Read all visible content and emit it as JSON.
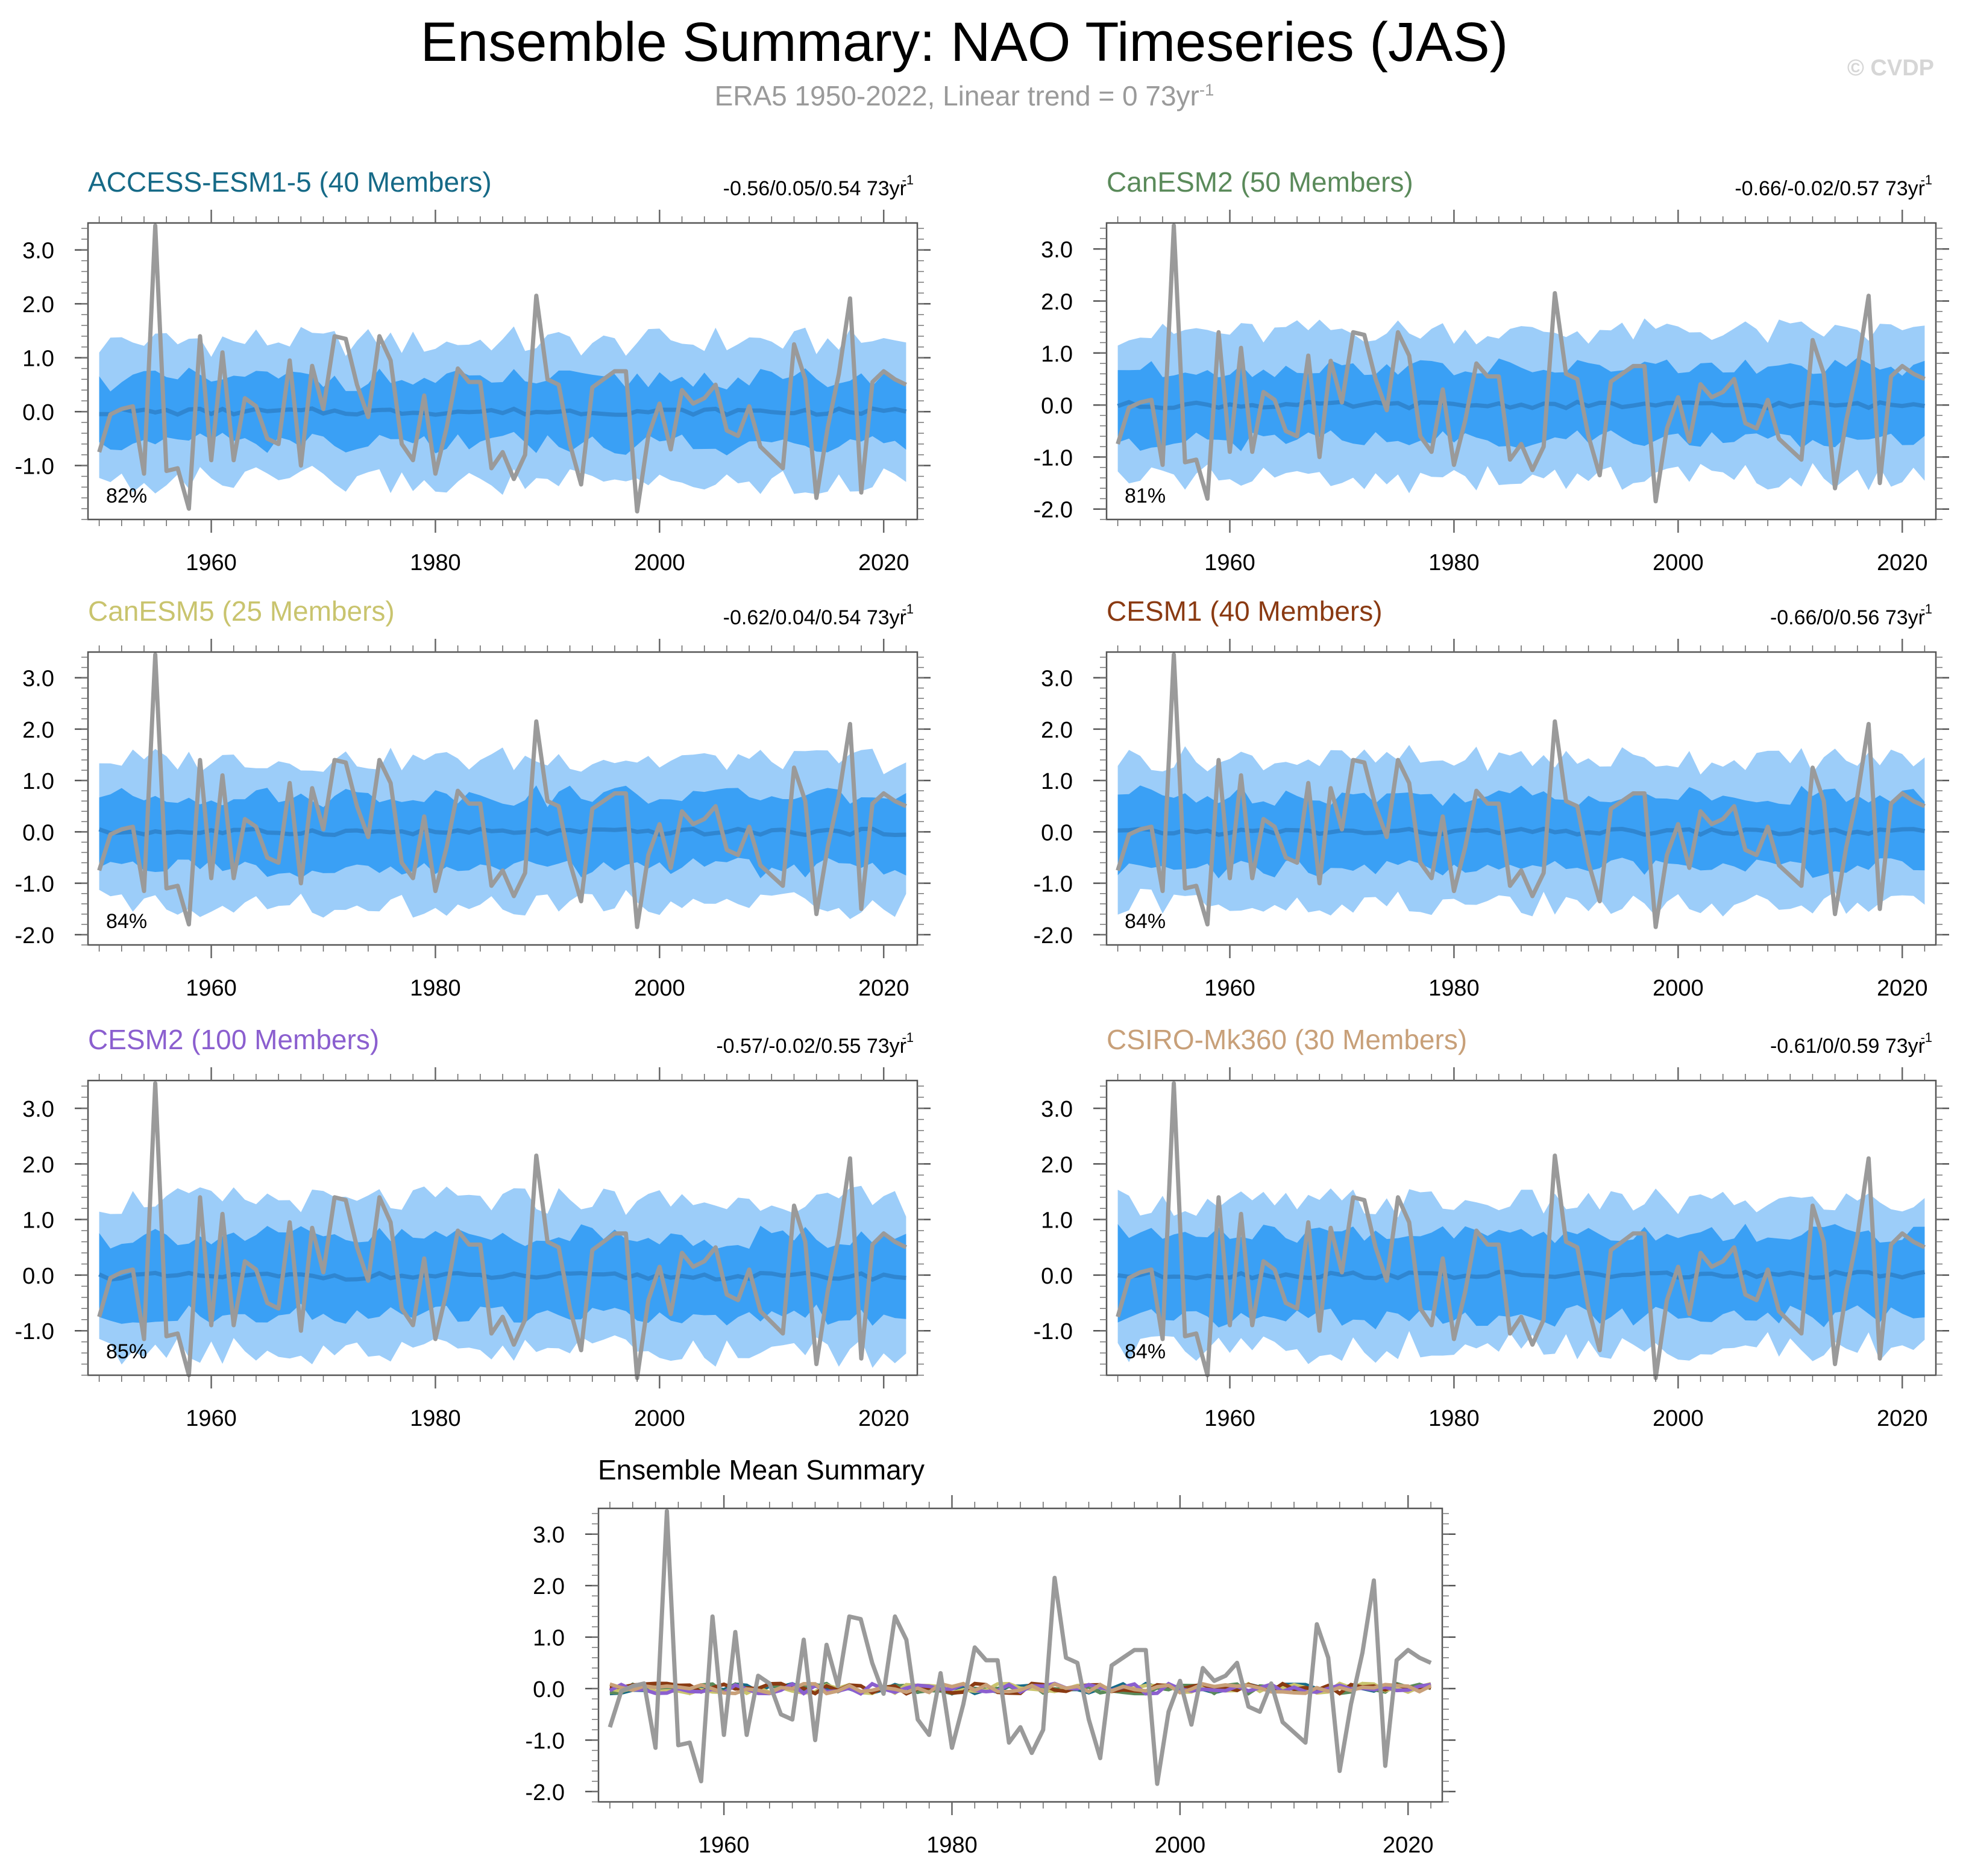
{
  "page": {
    "title": "Ensemble Summary: NAO Timeseries (JAS)",
    "subtitle_main": "ERA5 1950-2022, Linear trend = 0 73yr",
    "subtitle_sup": "-1",
    "watermark": "© CVDP"
  },
  "chart_data": [
    {
      "type": "line",
      "title": "ACCESS-ESM1-5 (40 Members)",
      "title_color": "#166a87",
      "trend_text": "-0.56/0.05/0.54 73yr",
      "trend_sup": "-1",
      "percent_label": "82%",
      "x_ticks": [
        "1960",
        "1980",
        "2000",
        "2020"
      ],
      "y_ticks": [
        "-1.0",
        "0.0",
        "1.0",
        "2.0",
        "3.0"
      ],
      "xlim": [
        1949,
        2023
      ],
      "ylim": [
        -2.0,
        3.5
      ],
      "outer_band_halfwidth": 1.3,
      "inner_band_halfwidth": 0.6,
      "mean_offset": 0.0
    },
    {
      "type": "line",
      "title": "CanESM2 (50 Members)",
      "title_color": "#5a8a5a",
      "trend_text": "-0.66/-0.02/0.57 73yr",
      "trend_sup": "-1",
      "percent_label": "81%",
      "x_ticks": [
        "1960",
        "1980",
        "2000",
        "2020"
      ],
      "y_ticks": [
        "-2.0",
        "-1.0",
        "0.0",
        "1.0",
        "2.0",
        "3.0"
      ],
      "xlim": [
        1949,
        2023
      ],
      "ylim": [
        -2.2,
        3.5
      ],
      "outer_band_halfwidth": 1.4,
      "inner_band_halfwidth": 0.7,
      "mean_offset": 0.0
    },
    {
      "type": "line",
      "title": "CanESM5 (25 Members)",
      "title_color": "#c9c46e",
      "trend_text": "-0.62/0.04/0.54 73yr",
      "trend_sup": "-1",
      "percent_label": "84%",
      "x_ticks": [
        "1960",
        "1980",
        "2000",
        "2020"
      ],
      "y_ticks": [
        "-2.0",
        "-1.0",
        "0.0",
        "1.0",
        "2.0",
        "3.0"
      ],
      "xlim": [
        1949,
        2023
      ],
      "ylim": [
        -2.2,
        3.5
      ],
      "outer_band_halfwidth": 1.4,
      "inner_band_halfwidth": 0.7,
      "mean_offset": 0.0
    },
    {
      "type": "line",
      "title": "CESM1 (40 Members)",
      "title_color": "#8a3a12",
      "trend_text": "-0.66/0/0.56 73yr",
      "trend_sup": "-1",
      "percent_label": "84%",
      "x_ticks": [
        "1960",
        "1980",
        "2000",
        "2020"
      ],
      "y_ticks": [
        "-2.0",
        "-1.0",
        "0.0",
        "1.0",
        "2.0",
        "3.0"
      ],
      "xlim": [
        1949,
        2023
      ],
      "ylim": [
        -2.2,
        3.5
      ],
      "outer_band_halfwidth": 1.4,
      "inner_band_halfwidth": 0.7,
      "mean_offset": 0.0
    },
    {
      "type": "line",
      "title": "CESM2 (100 Members)",
      "title_color": "#8b5fcf",
      "trend_text": "-0.57/-0.02/0.55 73yr",
      "trend_sup": "-1",
      "percent_label": "85%",
      "x_ticks": [
        "1960",
        "1980",
        "2000",
        "2020"
      ],
      "y_ticks": [
        "-1.0",
        "0.0",
        "1.0",
        "2.0",
        "3.0"
      ],
      "xlim": [
        1949,
        2023
      ],
      "ylim": [
        -1.8,
        3.5
      ],
      "outer_band_halfwidth": 1.35,
      "inner_band_halfwidth": 0.7,
      "mean_offset": -0.02
    },
    {
      "type": "line",
      "title": "CSIRO-Mk360 (30 Members)",
      "title_color": "#c8a079",
      "trend_text": "-0.61/0/0.59 73yr",
      "trend_sup": "-1",
      "percent_label": "84%",
      "x_ticks": [
        "1960",
        "1980",
        "2000",
        "2020"
      ],
      "y_ticks": [
        "-1.0",
        "0.0",
        "1.0",
        "2.0",
        "3.0"
      ],
      "xlim": [
        1949,
        2023
      ],
      "ylim": [
        -1.8,
        3.5
      ],
      "outer_band_halfwidth": 1.3,
      "inner_band_halfwidth": 0.75,
      "mean_offset": 0.0
    },
    {
      "type": "line",
      "title": "Ensemble Mean Summary",
      "title_color": "#000000",
      "x_ticks": [
        "1960",
        "1980",
        "2000",
        "2020"
      ],
      "y_ticks": [
        "-2.0",
        "-1.0",
        "0.0",
        "1.0",
        "2.0",
        "3.0"
      ],
      "xlim": [
        1949,
        2023
      ],
      "ylim": [
        -2.2,
        3.5
      ],
      "ensemble_mean_colors": [
        "#166a87",
        "#5a8a5a",
        "#c9c46e",
        "#8a3a12",
        "#8b5fcf",
        "#c8a079"
      ]
    }
  ],
  "observed": {
    "name": "ERA5",
    "color": "#9a9a9a",
    "years_start": 1950,
    "years_end": 2022,
    "values": [
      -0.75,
      -0.05,
      0.05,
      0.1,
      -1.15,
      3.45,
      -1.1,
      -1.05,
      -1.8,
      1.4,
      -0.9,
      1.1,
      -0.9,
      0.25,
      0.1,
      -0.5,
      -0.6,
      0.95,
      -1.0,
      0.85,
      0.05,
      1.4,
      1.35,
      0.5,
      -0.1,
      1.4,
      0.95,
      -0.6,
      -0.9,
      0.3,
      -1.15,
      -0.3,
      0.8,
      0.55,
      0.55,
      -1.05,
      -0.75,
      -1.25,
      -0.8,
      2.15,
      0.6,
      0.5,
      -0.6,
      -1.35,
      0.45,
      0.6,
      0.75,
      0.75,
      -1.85,
      -0.45,
      0.15,
      -0.7,
      0.4,
      0.15,
      0.25,
      0.5,
      -0.35,
      -0.45,
      0.1,
      -0.65,
      -0.85,
      -1.05,
      1.25,
      0.6,
      -1.6,
      -0.3,
      0.7,
      2.1,
      -1.5,
      0.55,
      0.75,
      0.6,
      0.5
    ]
  },
  "mean_colors": {
    "outer_band": "#9ccdf9",
    "inner_band": "#3aa0f5",
    "mean_line": "#2f86d1"
  }
}
